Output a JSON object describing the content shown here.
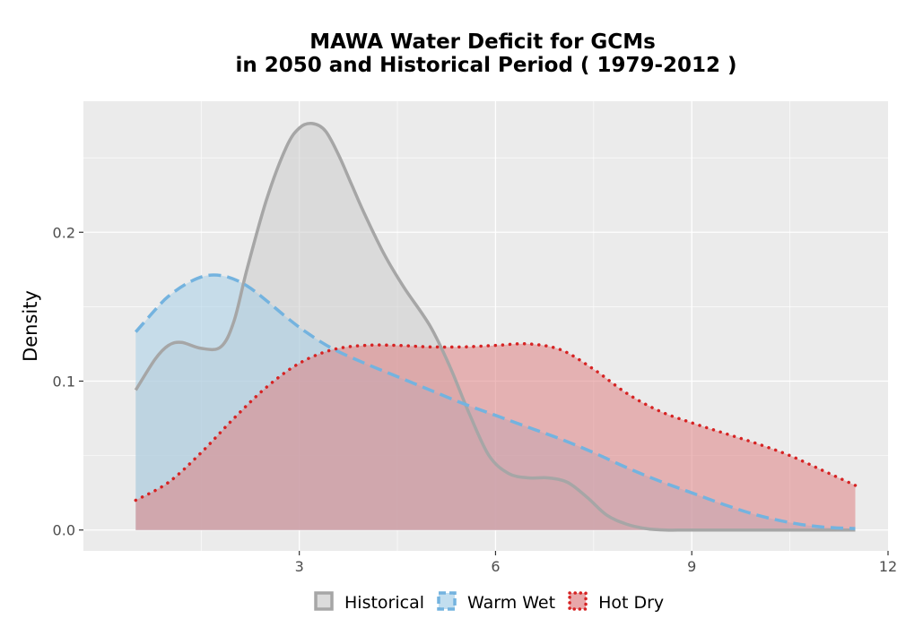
{
  "chart_data": {
    "type": "area",
    "title_line1": "MAWA  Water Deficit for GCMs",
    "title_line2": "in 2050 and Historical Period ( 1979-2012 )",
    "xlabel": "",
    "ylabel": "Density",
    "xlim": [
      -0.3,
      12
    ],
    "ylim": [
      -0.014,
      0.288
    ],
    "x_ticks": [
      {
        "value": 3,
        "label": "3"
      },
      {
        "value": 6,
        "label": "6"
      },
      {
        "value": 9,
        "label": "9"
      },
      {
        "value": 12,
        "label": "12"
      }
    ],
    "y_ticks": [
      {
        "value": 0.0,
        "label": "0.0"
      },
      {
        "value": 0.1,
        "label": "0.1"
      },
      {
        "value": 0.2,
        "label": "0.2"
      }
    ],
    "grid": true,
    "legend_position": "bottom",
    "series": [
      {
        "name": "Historical",
        "line_color": "#a6a6a6",
        "fill_color": "#cccccc",
        "line_style": "solid",
        "x": [
          0.5,
          0.8,
          1.0,
          1.2,
          1.5,
          1.8,
          2.0,
          2.2,
          2.5,
          2.8,
          3.0,
          3.2,
          3.4,
          3.6,
          3.8,
          4.0,
          4.3,
          4.6,
          5.0,
          5.3,
          5.6,
          5.9,
          6.2,
          6.5,
          6.8,
          7.1,
          7.4,
          7.7,
          8.0,
          8.3,
          8.6,
          9.0,
          10.0,
          11.0,
          11.5
        ],
        "values": [
          0.094,
          0.115,
          0.124,
          0.126,
          0.122,
          0.123,
          0.14,
          0.175,
          0.222,
          0.257,
          0.27,
          0.273,
          0.268,
          0.252,
          0.232,
          0.212,
          0.185,
          0.163,
          0.137,
          0.11,
          0.078,
          0.05,
          0.038,
          0.035,
          0.035,
          0.032,
          0.022,
          0.01,
          0.004,
          0.001,
          0.0,
          0.0,
          0.0,
          0.0,
          0.0
        ]
      },
      {
        "name": "Warm Wet",
        "line_color": "#74b3df",
        "fill_color": "#a8d0e8",
        "line_style": "dashed",
        "x": [
          0.5,
          0.8,
          1.0,
          1.3,
          1.6,
          1.9,
          2.2,
          2.5,
          2.8,
          3.1,
          3.5,
          4.0,
          4.5,
          5.0,
          5.5,
          6.0,
          6.5,
          7.0,
          7.5,
          8.0,
          8.5,
          9.0,
          9.5,
          10.0,
          10.5,
          11.0,
          11.5
        ],
        "values": [
          0.133,
          0.148,
          0.157,
          0.166,
          0.171,
          0.17,
          0.164,
          0.154,
          0.143,
          0.133,
          0.122,
          0.112,
          0.103,
          0.094,
          0.085,
          0.077,
          0.069,
          0.061,
          0.052,
          0.042,
          0.033,
          0.025,
          0.017,
          0.01,
          0.005,
          0.002,
          0.001
        ]
      },
      {
        "name": "Hot Dry",
        "line_color": "#d62323",
        "fill_color": "#de8284",
        "line_style": "dotted",
        "x": [
          0.5,
          1.0,
          1.5,
          2.0,
          2.5,
          3.0,
          3.5,
          4.0,
          4.5,
          5.0,
          5.5,
          6.0,
          6.5,
          7.0,
          7.5,
          8.0,
          8.5,
          9.0,
          9.5,
          10.0,
          10.5,
          11.0,
          11.5
        ],
        "values": [
          0.02,
          0.032,
          0.052,
          0.075,
          0.096,
          0.112,
          0.121,
          0.124,
          0.124,
          0.123,
          0.123,
          0.124,
          0.125,
          0.121,
          0.108,
          0.092,
          0.08,
          0.072,
          0.065,
          0.058,
          0.05,
          0.04,
          0.03
        ]
      }
    ]
  }
}
